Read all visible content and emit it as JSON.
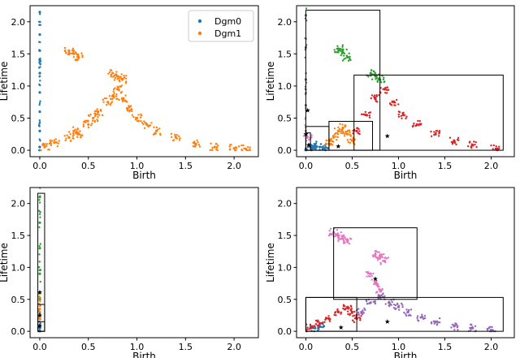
{
  "figure": {
    "title": ""
  },
  "chart_data": [
    {
      "id": "tl",
      "type": "scatter",
      "title": "",
      "xlabel": "Birth",
      "ylabel": "Lifetime",
      "xlim": [
        -0.1,
        2.25
      ],
      "ylim": [
        -0.1,
        2.25
      ],
      "xticks": [
        "0.0",
        "0.5",
        "1.0",
        "1.5",
        "2.0"
      ],
      "yticks": [
        "0.0",
        "0.5",
        "1.0",
        "1.5",
        "2.0"
      ],
      "legend": {
        "position": "top-right",
        "entries": [
          {
            "label": "Dgm0",
            "color": "#1f77b4"
          },
          {
            "label": "Dgm1",
            "color": "#ff7f0e"
          }
        ]
      },
      "series": [
        {
          "name": "Dgm0",
          "color": "#1f77b4",
          "x": [
            0.0,
            0.0,
            0.0,
            0.0,
            0.0,
            0.0,
            0.0,
            0.0,
            0.0
          ],
          "y": [
            0.05,
            0.3,
            0.6,
            0.9,
            1.2,
            1.4,
            1.55,
            1.8,
            2.15
          ]
        },
        {
          "name": "Dgm1",
          "color": "#ff7f0e",
          "x": [
            0.05,
            0.15,
            0.3,
            0.35,
            0.4,
            0.5,
            0.55,
            0.6,
            0.7,
            0.75,
            0.8,
            0.85,
            0.9,
            1.0,
            1.1,
            1.2,
            1.4,
            1.6,
            1.8,
            2.0,
            2.12,
            0.3,
            0.35,
            0.4,
            0.75,
            0.8,
            0.85
          ],
          "y": [
            0.05,
            0.12,
            0.2,
            0.3,
            0.25,
            0.4,
            0.5,
            0.6,
            0.75,
            0.85,
            0.95,
            0.8,
            0.65,
            0.5,
            0.4,
            0.3,
            0.2,
            0.1,
            0.05,
            0.03,
            0.02,
            1.55,
            1.5,
            1.45,
            1.2,
            1.15,
            1.1
          ]
        }
      ],
      "boxes": [],
      "stars": []
    },
    {
      "id": "tr",
      "type": "scatter",
      "title": "",
      "xlabel": "Birth",
      "ylabel": "Lifetime",
      "xlim": [
        -0.1,
        2.25
      ],
      "ylim": [
        -0.1,
        2.25
      ],
      "xticks": [
        "0.0",
        "0.5",
        "1.0",
        "1.5",
        "2.0"
      ],
      "yticks": [
        "0.0",
        "0.5",
        "1.0",
        "1.5",
        "2.0"
      ],
      "series": [
        {
          "name": "cluster-green",
          "color": "#2ca02c",
          "x": [
            0.0,
            0.0,
            0.0,
            0.0,
            0.35,
            0.4,
            0.45,
            0.7,
            0.75,
            0.8
          ],
          "y": [
            0.7,
            1.1,
            1.6,
            2.1,
            1.58,
            1.52,
            1.45,
            1.2,
            1.15,
            1.1
          ]
        },
        {
          "name": "cluster-blue",
          "color": "#1f77b4",
          "x": [
            0.0,
            0.05,
            0.1,
            0.15,
            0.2
          ],
          "y": [
            0.02,
            0.05,
            0.08,
            0.05,
            0.03
          ]
        },
        {
          "name": "cluster-orange",
          "color": "#ff7f0e",
          "x": [
            0.25,
            0.3,
            0.35,
            0.4,
            0.45,
            0.5
          ],
          "y": [
            0.1,
            0.2,
            0.3,
            0.35,
            0.25,
            0.15
          ]
        },
        {
          "name": "cluster-red",
          "color": "#d62728",
          "x": [
            0.55,
            0.65,
            0.75,
            0.85,
            0.95,
            1.05,
            1.2,
            1.4,
            1.6,
            1.8,
            2.05
          ],
          "y": [
            0.3,
            0.55,
            0.8,
            0.95,
            0.75,
            0.55,
            0.4,
            0.25,
            0.15,
            0.08,
            0.02
          ]
        },
        {
          "name": "cluster-pink",
          "color": "#e377c2",
          "x": [
            0.0,
            0.02
          ],
          "y": [
            0.3,
            0.2
          ]
        }
      ],
      "boxes": [
        {
          "x0": 0.0,
          "x1": 0.8,
          "y0": 0.0,
          "y1": 2.18
        },
        {
          "x0": 0.52,
          "x1": 2.13,
          "y0": 0.0,
          "y1": 1.17
        },
        {
          "x0": 0.25,
          "x1": 0.72,
          "y0": 0.0,
          "y1": 0.45
        },
        {
          "x0": 0.0,
          "x1": 0.25,
          "y0": 0.0,
          "y1": 0.37
        },
        {
          "x0": 0.0,
          "x1": 0.05,
          "y0": 0.0,
          "y1": 0.27
        }
      ],
      "stars": [
        {
          "x": 0.02,
          "y": 0.62
        },
        {
          "x": 0.0,
          "y": 0.25
        },
        {
          "x": 0.03,
          "y": 0.08
        },
        {
          "x": 0.35,
          "y": 0.06
        },
        {
          "x": 0.88,
          "y": 0.22
        }
      ]
    },
    {
      "id": "bl",
      "type": "scatter",
      "title": "",
      "xlabel": "Birth",
      "ylabel": "Lifetime",
      "xlim": [
        -0.1,
        2.25
      ],
      "ylim": [
        -0.1,
        2.25
      ],
      "xticks": [
        "0.0",
        "0.5",
        "1.0",
        "1.5",
        "2.0"
      ],
      "yticks": [
        "0.0",
        "0.5",
        "1.0",
        "1.5",
        "2.0"
      ],
      "series": [
        {
          "name": "cluster-green",
          "color": "#2ca02c",
          "x": [
            0.0,
            0.0,
            0.0,
            0.0,
            0.0
          ],
          "y": [
            0.5,
            0.9,
            1.3,
            1.7,
            2.1
          ]
        },
        {
          "name": "cluster-orange",
          "color": "#ff7f0e",
          "x": [
            0.0,
            0.0,
            0.0
          ],
          "y": [
            0.3,
            0.35,
            0.2
          ]
        },
        {
          "name": "cluster-blue",
          "color": "#1f77b4",
          "x": [
            0.0,
            0.0
          ],
          "y": [
            0.05,
            0.1
          ]
        }
      ],
      "boxes": [
        {
          "x0": -0.02,
          "x1": 0.05,
          "y0": 0.0,
          "y1": 2.16
        },
        {
          "x0": -0.02,
          "x1": 0.05,
          "y0": 0.0,
          "y1": 0.42
        },
        {
          "x0": -0.02,
          "x1": 0.05,
          "y0": 0.0,
          "y1": 0.15
        }
      ],
      "stars": [
        {
          "x": 0.0,
          "y": 0.61
        },
        {
          "x": 0.0,
          "y": 0.25
        },
        {
          "x": 0.0,
          "y": 0.08
        }
      ]
    },
    {
      "id": "br",
      "type": "scatter",
      "title": "",
      "xlabel": "Birth",
      "ylabel": "Lifetime",
      "xlim": [
        -0.1,
        2.25
      ],
      "ylim": [
        -0.1,
        2.25
      ],
      "xticks": [
        "0.0",
        "0.5",
        "1.0",
        "1.5",
        "2.0"
      ],
      "yticks": [
        "0.0",
        "0.5",
        "1.0",
        "1.5",
        "2.0"
      ],
      "series": [
        {
          "name": "cluster-blue",
          "color": "#1f77b4",
          "x": [
            0.1,
            0.15
          ],
          "y": [
            0.05,
            0.08
          ]
        },
        {
          "name": "cluster-red",
          "color": "#d62728",
          "x": [
            0.05,
            0.15,
            0.25,
            0.35,
            0.45,
            0.5,
            0.55
          ],
          "y": [
            0.05,
            0.12,
            0.2,
            0.3,
            0.38,
            0.3,
            0.2
          ]
        },
        {
          "name": "cluster-pink",
          "color": "#e377c2",
          "x": [
            0.3,
            0.35,
            0.4,
            0.45,
            0.75,
            0.8,
            0.85,
            0.7,
            0.75,
            0.8
          ],
          "y": [
            1.55,
            1.5,
            1.45,
            1.4,
            1.2,
            1.15,
            1.1,
            0.9,
            0.75,
            0.65
          ]
        },
        {
          "name": "cluster-purple",
          "color": "#9467bd",
          "x": [
            0.6,
            0.7,
            0.8,
            0.9,
            1.0,
            1.1,
            1.25,
            1.4,
            1.6,
            1.8,
            2.0
          ],
          "y": [
            0.3,
            0.45,
            0.55,
            0.45,
            0.38,
            0.3,
            0.22,
            0.15,
            0.08,
            0.05,
            0.02
          ]
        }
      ],
      "boxes": [
        {
          "x0": 0.3,
          "x1": 1.2,
          "y0": 0.5,
          "y1": 1.62
        },
        {
          "x0": 0.0,
          "x1": 2.13,
          "y0": 0.0,
          "y1": 0.53
        },
        {
          "x0": 0.0,
          "x1": 0.55,
          "y0": 0.0,
          "y1": 0.53
        }
      ],
      "stars": [
        {
          "x": 0.38,
          "y": 0.06
        },
        {
          "x": 0.88,
          "y": 0.15
        },
        {
          "x": 0.75,
          "y": 0.82
        }
      ]
    }
  ]
}
